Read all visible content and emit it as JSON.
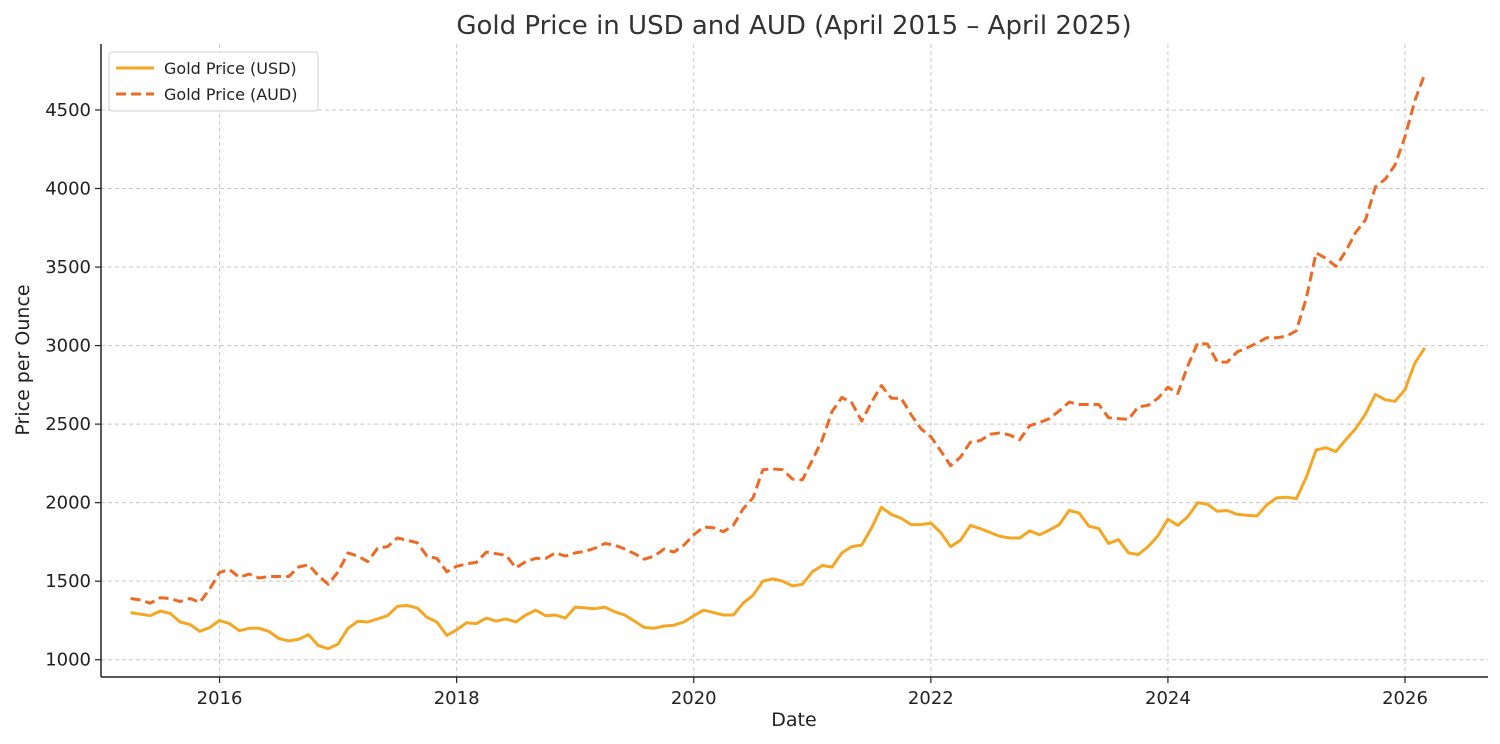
{
  "chart_data": {
    "type": "line",
    "title": "Gold Price in USD and AUD (April 2015 – April 2025)",
    "xlabel": "Date",
    "ylabel": "Price per Ounce",
    "xlim": [
      2015.0,
      2026.7
    ],
    "ylim": [
      890,
      4920
    ],
    "x_ticks": [
      2016,
      2018,
      2020,
      2022,
      2024,
      2026
    ],
    "x_tick_labels": [
      "2016",
      "2018",
      "2020",
      "2022",
      "2024",
      "2026"
    ],
    "y_ticks": [
      1000,
      1500,
      2000,
      2500,
      3000,
      3500,
      4000,
      4500
    ],
    "y_tick_labels": [
      "1000",
      "1500",
      "2000",
      "2500",
      "3000",
      "3500",
      "4000",
      "4500"
    ],
    "grid": true,
    "legend_position": "top-left",
    "series": [
      {
        "name": "Gold Price (USD)",
        "color": "#F5A623",
        "line_style": "solid",
        "points": [
          [
            "2015-04",
            1300
          ],
          [
            "2015-05",
            1290
          ],
          [
            "2015-06",
            1280
          ],
          [
            "2015-07",
            1310
          ],
          [
            "2015-08",
            1295
          ],
          [
            "2015-09",
            1240
          ],
          [
            "2015-10",
            1225
          ],
          [
            "2015-11",
            1180
          ],
          [
            "2015-12",
            1205
          ],
          [
            "2016-01",
            1250
          ],
          [
            "2016-02",
            1230
          ],
          [
            "2016-03",
            1185
          ],
          [
            "2016-04",
            1200
          ],
          [
            "2016-05",
            1200
          ],
          [
            "2016-06",
            1180
          ],
          [
            "2016-07",
            1135
          ],
          [
            "2016-08",
            1120
          ],
          [
            "2016-09",
            1130
          ],
          [
            "2016-10",
            1160
          ],
          [
            "2016-11",
            1090
          ],
          [
            "2016-12",
            1070
          ],
          [
            "2017-01",
            1100
          ],
          [
            "2017-02",
            1200
          ],
          [
            "2017-03",
            1245
          ],
          [
            "2017-04",
            1240
          ],
          [
            "2017-05",
            1260
          ],
          [
            "2017-06",
            1280
          ],
          [
            "2017-07",
            1340
          ],
          [
            "2017-08",
            1345
          ],
          [
            "2017-09",
            1330
          ],
          [
            "2017-10",
            1270
          ],
          [
            "2017-11",
            1240
          ],
          [
            "2017-12",
            1155
          ],
          [
            "2018-01",
            1190
          ],
          [
            "2018-02",
            1235
          ],
          [
            "2018-03",
            1230
          ],
          [
            "2018-04",
            1265
          ],
          [
            "2018-05",
            1245
          ],
          [
            "2018-06",
            1260
          ],
          [
            "2018-07",
            1240
          ],
          [
            "2018-08",
            1285
          ],
          [
            "2018-09",
            1315
          ],
          [
            "2018-10",
            1280
          ],
          [
            "2018-11",
            1285
          ],
          [
            "2018-12",
            1265
          ],
          [
            "2019-01",
            1335
          ],
          [
            "2019-02",
            1330
          ],
          [
            "2019-03",
            1325
          ],
          [
            "2019-04",
            1335
          ],
          [
            "2019-05",
            1305
          ],
          [
            "2019-06",
            1285
          ],
          [
            "2019-07",
            1245
          ],
          [
            "2019-08",
            1205
          ],
          [
            "2019-09",
            1200
          ],
          [
            "2019-10",
            1215
          ],
          [
            "2019-11",
            1220
          ],
          [
            "2019-12",
            1240
          ],
          [
            "2020-01",
            1280
          ],
          [
            "2020-02",
            1315
          ],
          [
            "2020-03",
            1300
          ],
          [
            "2020-04",
            1285
          ],
          [
            "2020-05",
            1285
          ],
          [
            "2020-06",
            1360
          ],
          [
            "2020-07",
            1410
          ],
          [
            "2020-08",
            1500
          ],
          [
            "2020-09",
            1515
          ],
          [
            "2020-10",
            1500
          ],
          [
            "2020-11",
            1470
          ],
          [
            "2020-12",
            1480
          ],
          [
            "2021-01",
            1560
          ],
          [
            "2021-02",
            1600
          ],
          [
            "2021-03",
            1590
          ],
          [
            "2021-04",
            1680
          ],
          [
            "2021-05",
            1720
          ],
          [
            "2021-06",
            1730
          ],
          [
            "2021-07",
            1840
          ],
          [
            "2021-08",
            1970
          ],
          [
            "2021-09",
            1925
          ],
          [
            "2021-10",
            1900
          ],
          [
            "2021-11",
            1860
          ],
          [
            "2021-12",
            1860
          ],
          [
            "2022-01",
            1870
          ],
          [
            "2022-02",
            1810
          ],
          [
            "2022-03",
            1720
          ],
          [
            "2022-04",
            1760
          ],
          [
            "2022-05",
            1855
          ],
          [
            "2022-06",
            1835
          ],
          [
            "2022-07",
            1810
          ],
          [
            "2022-08",
            1785
          ],
          [
            "2022-09",
            1775
          ],
          [
            "2022-10",
            1775
          ],
          [
            "2022-11",
            1820
          ],
          [
            "2022-12",
            1795
          ],
          [
            "2023-01",
            1825
          ],
          [
            "2023-02",
            1860
          ],
          [
            "2023-03",
            1950
          ],
          [
            "2023-04",
            1935
          ],
          [
            "2023-05",
            1850
          ],
          [
            "2023-06",
            1835
          ],
          [
            "2023-07",
            1740
          ],
          [
            "2023-08",
            1765
          ],
          [
            "2023-09",
            1680
          ],
          [
            "2023-10",
            1670
          ],
          [
            "2023-11",
            1720
          ],
          [
            "2023-12",
            1790
          ],
          [
            "2024-01",
            1895
          ],
          [
            "2024-02",
            1855
          ],
          [
            "2024-03",
            1910
          ],
          [
            "2024-04",
            2000
          ],
          [
            "2024-05",
            1990
          ],
          [
            "2024-06",
            1945
          ],
          [
            "2024-07",
            1950
          ],
          [
            "2024-08",
            1925
          ],
          [
            "2024-09",
            1920
          ],
          [
            "2024-10",
            1915
          ],
          [
            "2024-11",
            1985
          ],
          [
            "2024-12",
            2030
          ],
          [
            "2025-01",
            2035
          ],
          [
            "2025-02",
            2025
          ],
          [
            "2025-03",
            2160
          ],
          [
            "2025-04",
            2335
          ],
          [
            "2025-05",
            2350
          ],
          [
            "2025-06",
            2325
          ],
          [
            "2025-07",
            2400
          ],
          [
            "2025-08",
            2470
          ],
          [
            "2025-09",
            2565
          ],
          [
            "2025-10",
            2690
          ],
          [
            "2025-11",
            2655
          ],
          [
            "2025-12",
            2645
          ],
          [
            "2026-01",
            2720
          ],
          [
            "2026-02",
            2890
          ],
          [
            "2026-03",
            2985
          ]
        ]
      },
      {
        "name": "Gold Price (AUD)",
        "color": "#EE6A24",
        "line_style": "dashed",
        "points": [
          [
            "2015-04",
            1390
          ],
          [
            "2015-05",
            1380
          ],
          [
            "2015-06",
            1360
          ],
          [
            "2015-07",
            1395
          ],
          [
            "2015-08",
            1390
          ],
          [
            "2015-09",
            1370
          ],
          [
            "2015-10",
            1390
          ],
          [
            "2015-11",
            1365
          ],
          [
            "2015-12",
            1450
          ],
          [
            "2016-01",
            1555
          ],
          [
            "2016-02",
            1575
          ],
          [
            "2016-03",
            1525
          ],
          [
            "2016-04",
            1545
          ],
          [
            "2016-05",
            1520
          ],
          [
            "2016-06",
            1530
          ],
          [
            "2016-07",
            1530
          ],
          [
            "2016-08",
            1530
          ],
          [
            "2016-09",
            1590
          ],
          [
            "2016-10",
            1605
          ],
          [
            "2016-11",
            1535
          ],
          [
            "2016-12",
            1480
          ],
          [
            "2017-01",
            1560
          ],
          [
            "2017-02",
            1680
          ],
          [
            "2017-03",
            1660
          ],
          [
            "2017-04",
            1625
          ],
          [
            "2017-05",
            1710
          ],
          [
            "2017-06",
            1720
          ],
          [
            "2017-07",
            1775
          ],
          [
            "2017-08",
            1760
          ],
          [
            "2017-09",
            1745
          ],
          [
            "2017-10",
            1660
          ],
          [
            "2017-11",
            1645
          ],
          [
            "2017-12",
            1560
          ],
          [
            "2018-01",
            1595
          ],
          [
            "2018-02",
            1610
          ],
          [
            "2018-03",
            1620
          ],
          [
            "2018-04",
            1685
          ],
          [
            "2018-05",
            1675
          ],
          [
            "2018-06",
            1665
          ],
          [
            "2018-07",
            1585
          ],
          [
            "2018-08",
            1625
          ],
          [
            "2018-09",
            1645
          ],
          [
            "2018-10",
            1645
          ],
          [
            "2018-11",
            1680
          ],
          [
            "2018-12",
            1660
          ],
          [
            "2019-01",
            1680
          ],
          [
            "2019-02",
            1690
          ],
          [
            "2019-03",
            1710
          ],
          [
            "2019-04",
            1740
          ],
          [
            "2019-05",
            1730
          ],
          [
            "2019-06",
            1705
          ],
          [
            "2019-07",
            1675
          ],
          [
            "2019-08",
            1640
          ],
          [
            "2019-09",
            1660
          ],
          [
            "2019-10",
            1705
          ],
          [
            "2019-11",
            1685
          ],
          [
            "2019-12",
            1730
          ],
          [
            "2020-01",
            1795
          ],
          [
            "2020-02",
            1845
          ],
          [
            "2020-03",
            1840
          ],
          [
            "2020-04",
            1815
          ],
          [
            "2020-05",
            1855
          ],
          [
            "2020-06",
            1960
          ],
          [
            "2020-07",
            2030
          ],
          [
            "2020-08",
            2210
          ],
          [
            "2020-09",
            2215
          ],
          [
            "2020-10",
            2210
          ],
          [
            "2020-11",
            2150
          ],
          [
            "2020-12",
            2145
          ],
          [
            "2021-01",
            2270
          ],
          [
            "2021-02",
            2400
          ],
          [
            "2021-03",
            2580
          ],
          [
            "2021-04",
            2670
          ],
          [
            "2021-05",
            2635
          ],
          [
            "2021-06",
            2520
          ],
          [
            "2021-07",
            2640
          ],
          [
            "2021-08",
            2745
          ],
          [
            "2021-09",
            2665
          ],
          [
            "2021-10",
            2665
          ],
          [
            "2021-11",
            2560
          ],
          [
            "2021-12",
            2470
          ],
          [
            "2022-01",
            2420
          ],
          [
            "2022-02",
            2330
          ],
          [
            "2022-03",
            2235
          ],
          [
            "2022-04",
            2290
          ],
          [
            "2022-05",
            2385
          ],
          [
            "2022-06",
            2395
          ],
          [
            "2022-07",
            2435
          ],
          [
            "2022-08",
            2445
          ],
          [
            "2022-09",
            2430
          ],
          [
            "2022-10",
            2400
          ],
          [
            "2022-11",
            2490
          ],
          [
            "2022-12",
            2510
          ],
          [
            "2023-01",
            2535
          ],
          [
            "2023-02",
            2585
          ],
          [
            "2023-03",
            2640
          ],
          [
            "2023-04",
            2625
          ],
          [
            "2023-05",
            2625
          ],
          [
            "2023-06",
            2625
          ],
          [
            "2023-07",
            2540
          ],
          [
            "2023-08",
            2535
          ],
          [
            "2023-09",
            2530
          ],
          [
            "2023-10",
            2610
          ],
          [
            "2023-11",
            2620
          ],
          [
            "2023-12",
            2665
          ],
          [
            "2024-01",
            2735
          ],
          [
            "2024-02",
            2695
          ],
          [
            "2024-03",
            2870
          ],
          [
            "2024-04",
            3015
          ],
          [
            "2024-05",
            3010
          ],
          [
            "2024-06",
            2895
          ],
          [
            "2024-07",
            2895
          ],
          [
            "2024-08",
            2960
          ],
          [
            "2024-09",
            2985
          ],
          [
            "2024-10",
            3015
          ],
          [
            "2024-11",
            3050
          ],
          [
            "2024-12",
            3050
          ],
          [
            "2025-01",
            3060
          ],
          [
            "2025-02",
            3095
          ],
          [
            "2025-03",
            3300
          ],
          [
            "2025-04",
            3590
          ],
          [
            "2025-05",
            3555
          ],
          [
            "2025-06",
            3505
          ],
          [
            "2025-07",
            3600
          ],
          [
            "2025-08",
            3720
          ],
          [
            "2025-09",
            3800
          ],
          [
            "2025-10",
            4010
          ],
          [
            "2025-11",
            4060
          ],
          [
            "2025-12",
            4150
          ],
          [
            "2026-01",
            4330
          ],
          [
            "2026-02",
            4560
          ],
          [
            "2026-03",
            4730
          ]
        ]
      }
    ]
  }
}
